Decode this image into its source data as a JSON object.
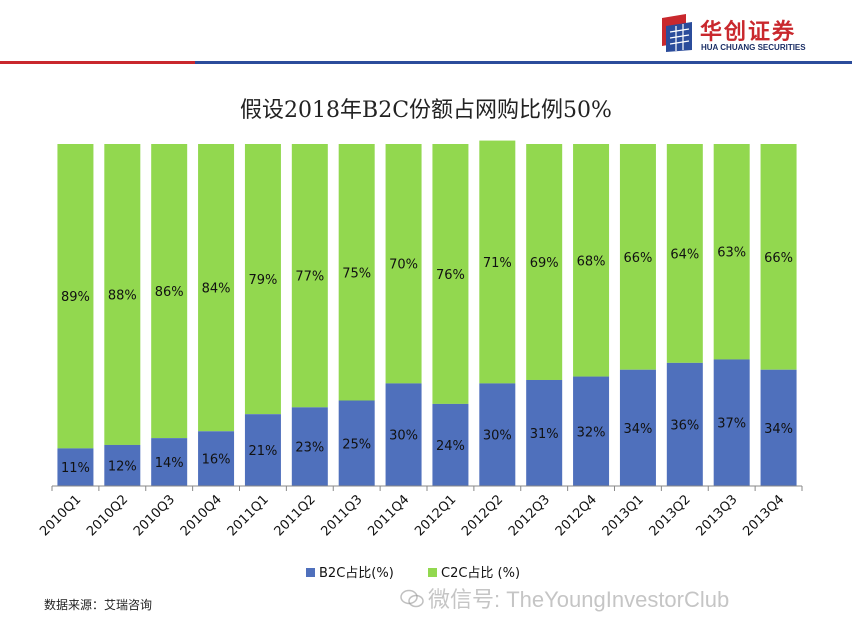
{
  "header": {
    "brand_cn": "华创证券",
    "brand_en": "HUA CHUANG SECURITIES",
    "logo_red": "#c9282d",
    "logo_blue": "#2b4c9b"
  },
  "footer": {
    "source": "数据来源：艾瑞咨询",
    "watermark": "微信号: TheYoungInvestorClub"
  },
  "chart_data": {
    "type": "bar",
    "stacked": true,
    "title": "假设2018年B2C份额占网购比例50%",
    "categories": [
      "2010Q1",
      "2010Q2",
      "2010Q3",
      "2010Q4",
      "2011Q1",
      "2011Q2",
      "2011Q3",
      "2011Q4",
      "2012Q1",
      "2012Q2",
      "2012Q3",
      "2012Q4",
      "2013Q1",
      "2013Q2",
      "2013Q3",
      "2013Q4"
    ],
    "series": [
      {
        "name": "B2C占比(%)",
        "color": "#4f70bc",
        "values": [
          11,
          12,
          14,
          16,
          21,
          23,
          25,
          30,
          24,
          30,
          31,
          32,
          34,
          36,
          37,
          34
        ],
        "labels": [
          "11%",
          "12%",
          "14%",
          "16%",
          "21%",
          "23%",
          "25%",
          "30%",
          "24%",
          "30%",
          "31%",
          "32%",
          "34%",
          "36%",
          "37%",
          "34%"
        ]
      },
      {
        "name": "C2C占比 (%)",
        "color": "#92d84f",
        "values": [
          89,
          88,
          86,
          84,
          79,
          77,
          75,
          70,
          76,
          71,
          69,
          68,
          66,
          64,
          63,
          66
        ],
        "labels": [
          "89%",
          "88%",
          "86%",
          "84%",
          "79%",
          "77%",
          "75%",
          "70%",
          "76%",
          "71%",
          "69%",
          "68%",
          "66%",
          "64%",
          "63%",
          "66%"
        ]
      }
    ],
    "ylim": [
      0,
      100
    ],
    "legend_position": "bottom"
  }
}
